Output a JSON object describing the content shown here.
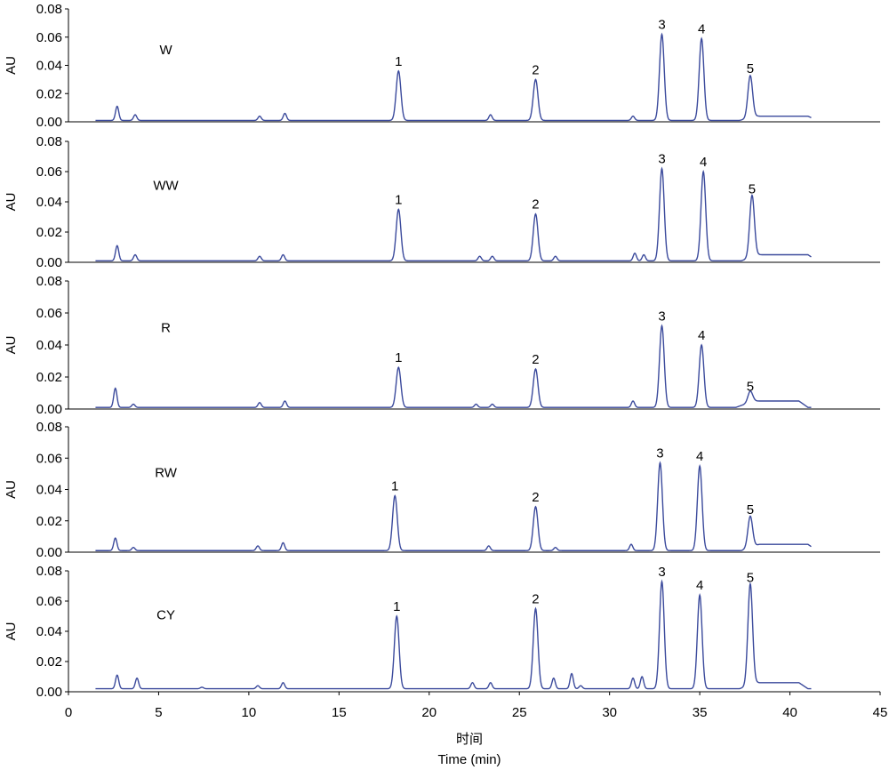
{
  "chart_data": {
    "type": "line",
    "x_axis": {
      "label_cn": "时间",
      "label": "Time (min)",
      "range": [
        0,
        45
      ],
      "ticks": [
        0,
        5,
        10,
        15,
        20,
        25,
        30,
        35,
        40,
        45
      ],
      "tick_labels": [
        "0",
        "5",
        "10",
        "15",
        "20",
        "25",
        "30",
        "35",
        "40",
        "45"
      ]
    },
    "y_axis": {
      "label": "AU",
      "range": [
        0,
        0.08
      ],
      "ticks": [
        0,
        0.02,
        0.04,
        0.06,
        0.08
      ],
      "tick_labels": [
        "0.00",
        "0.02",
        "0.04",
        "0.06",
        "0.08"
      ]
    },
    "line_color": "#3b4a9c",
    "panels": [
      {
        "name": "W",
        "baseline": 0.001,
        "peaks": [
          {
            "label": "1",
            "x": 18.3,
            "y": 0.036
          },
          {
            "label": "2",
            "x": 25.9,
            "y": 0.03
          },
          {
            "label": "3",
            "x": 32.9,
            "y": 0.062
          },
          {
            "label": "4",
            "x": 35.1,
            "y": 0.059
          },
          {
            "label": "5",
            "x": 37.8,
            "y": 0.031
          }
        ],
        "minor_peaks": [
          [
            2.7,
            0.011
          ],
          [
            3.7,
            0.005
          ],
          [
            7.4,
            0.001
          ],
          [
            10.6,
            0.004
          ],
          [
            12.0,
            0.006
          ],
          [
            23.4,
            0.005
          ],
          [
            31.3,
            0.004
          ]
        ],
        "hump": [
          38.2,
          41,
          0.003
        ]
      },
      {
        "name": "WW",
        "baseline": 0.001,
        "peaks": [
          {
            "label": "1",
            "x": 18.3,
            "y": 0.035
          },
          {
            "label": "2",
            "x": 25.9,
            "y": 0.032
          },
          {
            "label": "3",
            "x": 32.9,
            "y": 0.062
          },
          {
            "label": "4",
            "x": 35.2,
            "y": 0.06
          },
          {
            "label": "5",
            "x": 37.9,
            "y": 0.042
          }
        ],
        "minor_peaks": [
          [
            2.7,
            0.011
          ],
          [
            3.7,
            0.005
          ],
          [
            7.4,
            0.001
          ],
          [
            10.6,
            0.004
          ],
          [
            11.9,
            0.005
          ],
          [
            22.8,
            0.004
          ],
          [
            23.5,
            0.004
          ],
          [
            27.0,
            0.004
          ],
          [
            31.4,
            0.006
          ],
          [
            31.9,
            0.005
          ]
        ],
        "hump": [
          38.3,
          41,
          0.004
        ]
      },
      {
        "name": "R",
        "baseline": 0.001,
        "peaks": [
          {
            "label": "1",
            "x": 18.3,
            "y": 0.026
          },
          {
            "label": "2",
            "x": 25.9,
            "y": 0.025
          },
          {
            "label": "3",
            "x": 32.9,
            "y": 0.052
          },
          {
            "label": "4",
            "x": 35.1,
            "y": 0.04
          },
          {
            "label": "5",
            "x": 37.8,
            "y": 0.008
          }
        ],
        "minor_peaks": [
          [
            2.6,
            0.013
          ],
          [
            3.6,
            0.003
          ],
          [
            10.6,
            0.004
          ],
          [
            12.0,
            0.005
          ],
          [
            22.6,
            0.003
          ],
          [
            23.5,
            0.003
          ],
          [
            31.3,
            0.005
          ]
        ],
        "hump": [
          38.0,
          40.5,
          0.004
        ]
      },
      {
        "name": "RW",
        "baseline": 0.001,
        "peaks": [
          {
            "label": "1",
            "x": 18.1,
            "y": 0.036
          },
          {
            "label": "2",
            "x": 25.9,
            "y": 0.029
          },
          {
            "label": "3",
            "x": 32.8,
            "y": 0.057
          },
          {
            "label": "4",
            "x": 35.0,
            "y": 0.055
          },
          {
            "label": "5",
            "x": 37.8,
            "y": 0.021
          }
        ],
        "minor_peaks": [
          [
            2.6,
            0.009
          ],
          [
            3.6,
            0.003
          ],
          [
            7.4,
            0.001
          ],
          [
            10.5,
            0.004
          ],
          [
            11.9,
            0.006
          ],
          [
            23.3,
            0.004
          ],
          [
            27.0,
            0.003
          ],
          [
            31.2,
            0.005
          ]
        ],
        "hump": [
          38.3,
          41,
          0.004
        ]
      },
      {
        "name": "CY",
        "baseline": 0.002,
        "peaks": [
          {
            "label": "1",
            "x": 18.2,
            "y": 0.05
          },
          {
            "label": "2",
            "x": 25.9,
            "y": 0.055
          },
          {
            "label": "3",
            "x": 32.9,
            "y": 0.073
          },
          {
            "label": "4",
            "x": 35.0,
            "y": 0.064
          },
          {
            "label": "5",
            "x": 37.8,
            "y": 0.069
          }
        ],
        "minor_peaks": [
          [
            2.7,
            0.011
          ],
          [
            3.8,
            0.009
          ],
          [
            7.4,
            0.003
          ],
          [
            10.5,
            0.004
          ],
          [
            11.9,
            0.006
          ],
          [
            22.4,
            0.006
          ],
          [
            23.4,
            0.006
          ],
          [
            26.9,
            0.009
          ],
          [
            27.9,
            0.012
          ],
          [
            28.4,
            0.004
          ],
          [
            31.3,
            0.009
          ],
          [
            31.8,
            0.01
          ]
        ],
        "hump": [
          38.2,
          40.5,
          0.004
        ]
      }
    ]
  }
}
